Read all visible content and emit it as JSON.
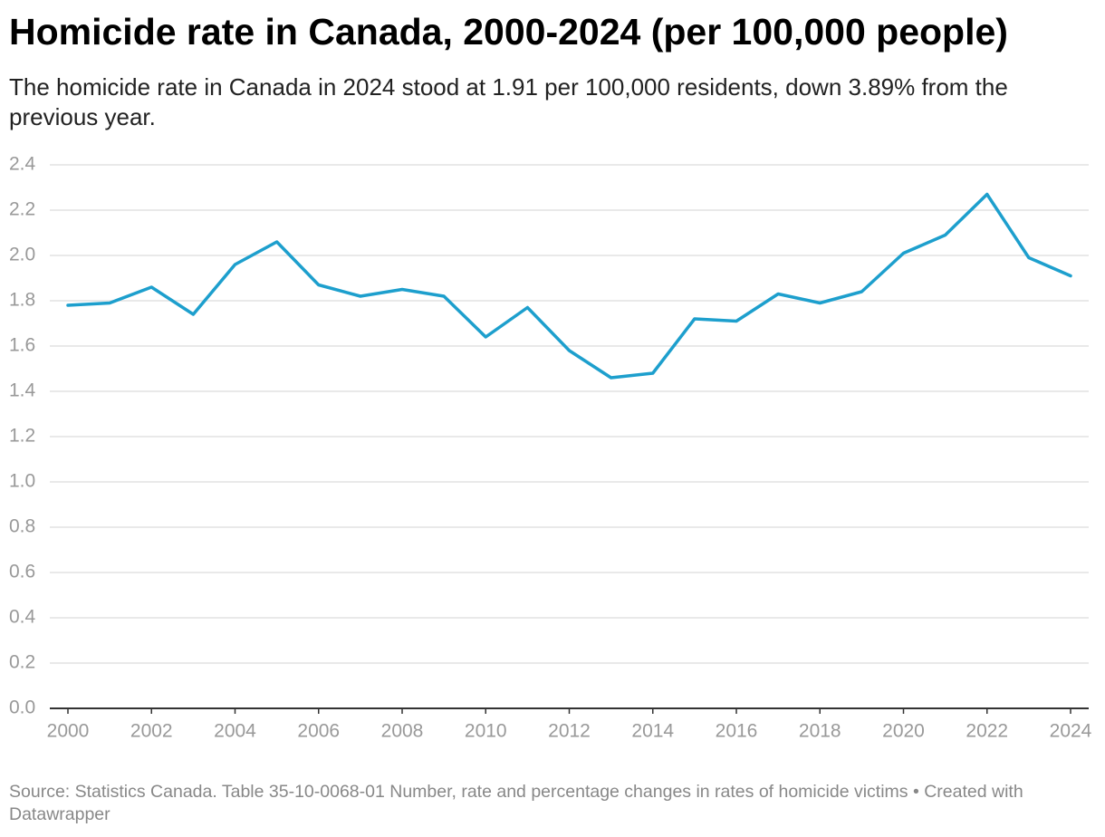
{
  "chart_data": {
    "type": "line",
    "title": "Homicide rate in Canada, 2000-2024 (per 100,000 people)",
    "subtitle": "The homicide rate in Canada in 2024 stood at 1.91 per 100,000 residents, down 3.89% from the previous year.",
    "source": "Source: Statistics Canada. Table 35-10-0068-01 Number, rate and percentage changes in rates of homicide victims • Created with Datawrapper",
    "x": [
      2000,
      2001,
      2002,
      2003,
      2004,
      2005,
      2006,
      2007,
      2008,
      2009,
      2010,
      2011,
      2012,
      2013,
      2014,
      2015,
      2016,
      2017,
      2018,
      2019,
      2020,
      2021,
      2022,
      2023,
      2024
    ],
    "values": [
      1.78,
      1.79,
      1.86,
      1.74,
      1.96,
      2.06,
      1.87,
      1.82,
      1.85,
      1.82,
      1.64,
      1.77,
      1.58,
      1.46,
      1.48,
      1.72,
      1.71,
      1.83,
      1.79,
      1.84,
      2.01,
      2.09,
      2.27,
      1.99,
      1.91
    ],
    "color": "#1d9fcd",
    "xlim": [
      2000,
      2024
    ],
    "xticks": [
      2000,
      2002,
      2004,
      2006,
      2008,
      2010,
      2012,
      2014,
      2016,
      2018,
      2020,
      2022,
      2024
    ],
    "ylim": [
      0,
      2.4
    ],
    "yticks": [
      {
        "value": 0,
        "label": "0.0"
      },
      0.2,
      0.4,
      0.6,
      0.8,
      {
        "value": 1,
        "label": "1.0"
      },
      1.2,
      1.4,
      1.6,
      1.8,
      {
        "value": 2,
        "label": "2.0"
      },
      2.2,
      2.4
    ],
    "grid": true
  }
}
